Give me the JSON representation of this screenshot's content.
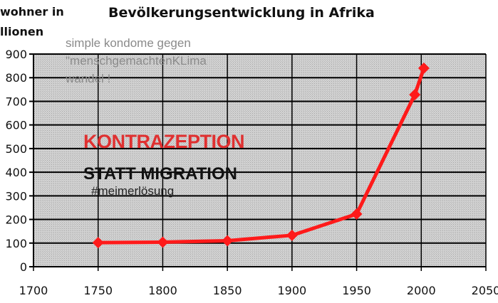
{
  "chart_data": {
    "type": "line",
    "title": "Bevölkerungsentwicklung in Afrika",
    "ylabel_lines": [
      "wohner in",
      "llionen"
    ],
    "xlabel": "",
    "x_ticks": [
      "1700",
      "1750",
      "1800",
      "1850",
      "1900",
      "1950",
      "2000",
      "2050"
    ],
    "y_ticks": [
      "0",
      "100",
      "200",
      "300",
      "400",
      "500",
      "600",
      "700",
      "800",
      "900"
    ],
    "xlim": [
      1700,
      2050
    ],
    "ylim": [
      0,
      900
    ],
    "grid": true,
    "series": [
      {
        "x": [
          1750,
          1800,
          1850,
          1900,
          1950,
          1995,
          2002
        ],
        "y": [
          102,
          104,
          110,
          133,
          223,
          728,
          840
        ],
        "color": "#ff1a1a",
        "marker": "diamond"
      }
    ],
    "plot_background": "#c8c8c8"
  },
  "annotations": {
    "note_lines": [
      "simple kondome gegen",
      "\"menschgemachtenKLima",
      "wandel !"
    ],
    "headline": "KONTRAZEPTION",
    "subheadline": "STATT MIGRATION",
    "hashtag": "#meimerlösung"
  }
}
